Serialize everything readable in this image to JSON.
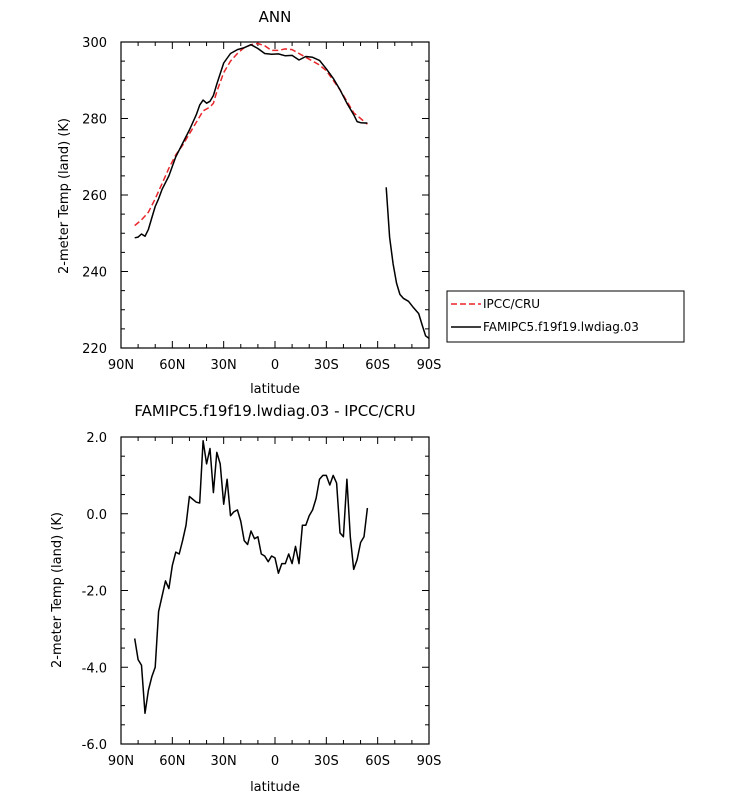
{
  "chart_data": [
    {
      "type": "line",
      "title": "ANN",
      "xlabel": "latitude",
      "ylabel": "2-meter Temp (land) (K)",
      "x_tick_labels": [
        "90N",
        "60N",
        "30N",
        "0",
        "30S",
        "60S",
        "90S"
      ],
      "x_ticks": [
        90,
        60,
        30,
        0,
        -30,
        -60,
        -90
      ],
      "xlim": [
        90,
        -90
      ],
      "y_ticks": [
        220,
        240,
        260,
        280,
        300
      ],
      "y_tick_labels": [
        "220",
        "240",
        "260",
        "280",
        "300"
      ],
      "ylim": [
        220,
        300
      ],
      "legend_placement": "right-outside",
      "series": [
        {
          "name": "IPCC/CRU",
          "color": "#e8262b",
          "dash": "dashed",
          "segments": [
            [
              [
                82,
                252
              ],
              [
                78,
                253.5
              ],
              [
                74,
                255.5
              ],
              [
                70,
                259
              ],
              [
                66,
                263
              ],
              [
                62,
                267
              ],
              [
                58,
                270.5
              ],
              [
                54,
                273
              ],
              [
                50,
                276
              ],
              [
                46,
                279
              ],
              [
                42,
                282
              ],
              [
                38,
                283
              ],
              [
                36,
                284
              ],
              [
                34,
                287
              ],
              [
                30,
                292
              ],
              [
                26,
                295
              ],
              [
                22,
                297
              ],
              [
                18,
                298.5
              ],
              [
                14,
                299.3
              ],
              [
                10,
                299.6
              ],
              [
                6,
                299
              ],
              [
                2,
                297.8
              ],
              [
                -2,
                297.8
              ],
              [
                -6,
                298.2
              ],
              [
                -10,
                298
              ],
              [
                -14,
                297
              ],
              [
                -18,
                296
              ],
              [
                -22,
                295
              ],
              [
                -26,
                294
              ],
              [
                -30,
                292.5
              ],
              [
                -34,
                290
              ],
              [
                -38,
                287.5
              ],
              [
                -42,
                284.5
              ],
              [
                -46,
                281.5
              ],
              [
                -50,
                280
              ],
              [
                -54,
                278.5
              ]
            ]
          ]
        },
        {
          "name": "FAMIPC5.f19f19.lwdiag.03",
          "color": "#000000",
          "dash": "solid",
          "segments": [
            [
              [
                82,
                248.8
              ],
              [
                80,
                249
              ],
              [
                78,
                249.8
              ],
              [
                76,
                249.2
              ],
              [
                74,
                251
              ],
              [
                72,
                254
              ],
              [
                70,
                257
              ],
              [
                68,
                259
              ],
              [
                66,
                261.5
              ],
              [
                62,
                265
              ],
              [
                58,
                270
              ],
              [
                54,
                273.5
              ],
              [
                50,
                277
              ],
              [
                46,
                281
              ],
              [
                44,
                283.5
              ],
              [
                42,
                284.8
              ],
              [
                40,
                284
              ],
              [
                38,
                284.5
              ],
              [
                36,
                286
              ],
              [
                34,
                289
              ],
              [
                30,
                294.5
              ],
              [
                26,
                297
              ],
              [
                22,
                298
              ],
              [
                18,
                298.5
              ],
              [
                14,
                299.3
              ],
              [
                10,
                298.3
              ],
              [
                6,
                297
              ],
              [
                2,
                296.8
              ],
              [
                -2,
                296.9
              ],
              [
                -6,
                296.4
              ],
              [
                -10,
                296.5
              ],
              [
                -14,
                295.3
              ],
              [
                -18,
                296.2
              ],
              [
                -22,
                296
              ],
              [
                -26,
                295.2
              ],
              [
                -30,
                293
              ],
              [
                -34,
                290.5
              ],
              [
                -38,
                287.5
              ],
              [
                -42,
                284
              ],
              [
                -46,
                281
              ],
              [
                -48,
                279.2
              ],
              [
                -50,
                278.9
              ],
              [
                -54,
                278.8
              ]
            ],
            [
              [
                -65,
                262
              ],
              [
                -67,
                249
              ],
              [
                -69,
                242
              ],
              [
                -71,
                237
              ],
              [
                -73,
                234
              ],
              [
                -75,
                233
              ],
              [
                -78,
                232.2
              ],
              [
                -81,
                230.5
              ],
              [
                -84,
                229
              ],
              [
                -86,
                226
              ],
              [
                -88,
                223.2
              ],
              [
                -90,
                222.5
              ]
            ]
          ]
        }
      ]
    },
    {
      "type": "line",
      "title": "FAMIPC5.f19f19.lwdiag.03 - IPCC/CRU",
      "xlabel": "latitude",
      "ylabel": "2-meter Temp (land) (K)",
      "x_tick_labels": [
        "90N",
        "60N",
        "30N",
        "0",
        "30S",
        "60S",
        "90S"
      ],
      "x_ticks": [
        90,
        60,
        30,
        0,
        -30,
        -60,
        -90
      ],
      "xlim": [
        90,
        -90
      ],
      "y_ticks": [
        -6,
        -4,
        -2,
        0,
        2
      ],
      "y_tick_labels": [
        "-6.0",
        "-4.0",
        "-2.0",
        "0.0",
        "2.0"
      ],
      "ylim": [
        -6,
        2
      ],
      "series": [
        {
          "color": "#000000",
          "dash": "solid",
          "segments": [
            [
              [
                82,
                -3.25
              ],
              [
                80,
                -3.8
              ],
              [
                78,
                -3.95
              ],
              [
                76,
                -5.2
              ],
              [
                74,
                -4.6
              ],
              [
                72,
                -4.25
              ],
              [
                70,
                -4
              ],
              [
                68,
                -2.55
              ],
              [
                64,
                -1.75
              ],
              [
                62,
                -1.95
              ],
              [
                60,
                -1.35
              ],
              [
                58,
                -1
              ],
              [
                56,
                -1.05
              ],
              [
                54,
                -0.7
              ],
              [
                52,
                -0.3
              ],
              [
                50,
                0.45
              ],
              [
                46,
                0.3
              ],
              [
                44,
                0.28
              ],
              [
                42,
                1.9
              ],
              [
                40,
                1.3
              ],
              [
                38,
                1.7
              ],
              [
                36,
                0.55
              ],
              [
                34,
                1.6
              ],
              [
                32,
                1.3
              ],
              [
                30,
                0.25
              ],
              [
                28,
                0.9
              ],
              [
                26,
                -0.05
              ],
              [
                24,
                0.05
              ],
              [
                22,
                0.1
              ],
              [
                20,
                -0.2
              ],
              [
                18,
                -0.7
              ],
              [
                16,
                -0.8
              ],
              [
                14,
                -0.45
              ],
              [
                12,
                -0.65
              ],
              [
                10,
                -0.6
              ],
              [
                8,
                -1.05
              ],
              [
                6,
                -1.1
              ],
              [
                4,
                -1.25
              ],
              [
                2,
                -1.1
              ],
              [
                0,
                -1.15
              ],
              [
                -2,
                -1.55
              ],
              [
                -4,
                -1.3
              ],
              [
                -6,
                -1.3
              ],
              [
                -8,
                -1.05
              ],
              [
                -10,
                -1.3
              ],
              [
                -12,
                -0.85
              ],
              [
                -14,
                -1.3
              ],
              [
                -16,
                -0.3
              ],
              [
                -18,
                -0.3
              ],
              [
                -20,
                -0.05
              ],
              [
                -22,
                0.1
              ],
              [
                -24,
                0.4
              ],
              [
                -26,
                0.9
              ],
              [
                -28,
                1
              ],
              [
                -30,
                1
              ],
              [
                -32,
                0.75
              ],
              [
                -34,
                1
              ],
              [
                -36,
                0.8
              ],
              [
                -38,
                -0.5
              ],
              [
                -40,
                -0.6
              ],
              [
                -42,
                0.9
              ],
              [
                -44,
                -0.6
              ],
              [
                -46,
                -1.45
              ],
              [
                -48,
                -1.2
              ],
              [
                -50,
                -0.75
              ],
              [
                -52,
                -0.6
              ],
              [
                -54,
                0.15
              ]
            ]
          ]
        }
      ]
    }
  ]
}
